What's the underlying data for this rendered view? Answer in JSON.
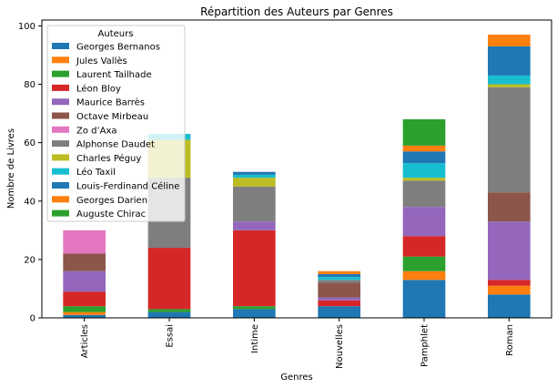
{
  "chart_data": {
    "type": "bar",
    "stacked": true,
    "title": "Répartition des Auteurs par Genres",
    "xlabel": "Genres",
    "ylabel": "Nombre de Livres",
    "ylim": [
      0,
      102
    ],
    "yticks": [
      0,
      20,
      40,
      60,
      80,
      100
    ],
    "grid": false,
    "legend_title": "Auteurs",
    "legend_position": "top-left",
    "categories": [
      "Articles",
      "Essai",
      "Intime",
      "Nouvelles",
      "Pamphlet",
      "Roman"
    ],
    "series": [
      {
        "name": "Georges Bernanos",
        "color": "#1f77b4",
        "values": [
          1,
          2,
          3,
          4,
          13,
          8
        ]
      },
      {
        "name": "Jules Vallès",
        "color": "#ff7f0e",
        "values": [
          1,
          0,
          0,
          0,
          3,
          3
        ]
      },
      {
        "name": "Laurent Tailhade",
        "color": "#2ca02c",
        "values": [
          2,
          1,
          1,
          0,
          5,
          0
        ]
      },
      {
        "name": "Léon Bloy",
        "color": "#d62728",
        "values": [
          5,
          21,
          26,
          2,
          7,
          2
        ]
      },
      {
        "name": "Maurice Barrès",
        "color": "#9467bd",
        "values": [
          7,
          0,
          3,
          1,
          10,
          20
        ]
      },
      {
        "name": "Octave Mirbeau",
        "color": "#8c564b",
        "values": [
          6,
          0,
          0,
          5,
          0,
          10
        ]
      },
      {
        "name": "Zo d’Axa",
        "color": "#e377c2",
        "values": [
          8,
          0,
          0,
          0,
          0,
          0
        ]
      },
      {
        "name": "Alphonse Daudet",
        "color": "#7f7f7f",
        "values": [
          0,
          24,
          12,
          1,
          9,
          36
        ]
      },
      {
        "name": "Charles Péguy",
        "color": "#bcbd22",
        "values": [
          0,
          13,
          3,
          0,
          1,
          1
        ]
      },
      {
        "name": "Léo Taxil",
        "color": "#17becf",
        "values": [
          0,
          2,
          1,
          1,
          5,
          3
        ]
      },
      {
        "name": "Louis-Ferdinand Céline",
        "color": "#1f77b4",
        "values": [
          0,
          0,
          1,
          1,
          4,
          10
        ]
      },
      {
        "name": "Georges Darien",
        "color": "#ff7f0e",
        "values": [
          0,
          0,
          0,
          1,
          2,
          4
        ]
      },
      {
        "name": "Auguste Chirac",
        "color": "#2ca02c",
        "values": [
          0,
          0,
          0,
          0,
          9,
          0
        ]
      }
    ]
  }
}
